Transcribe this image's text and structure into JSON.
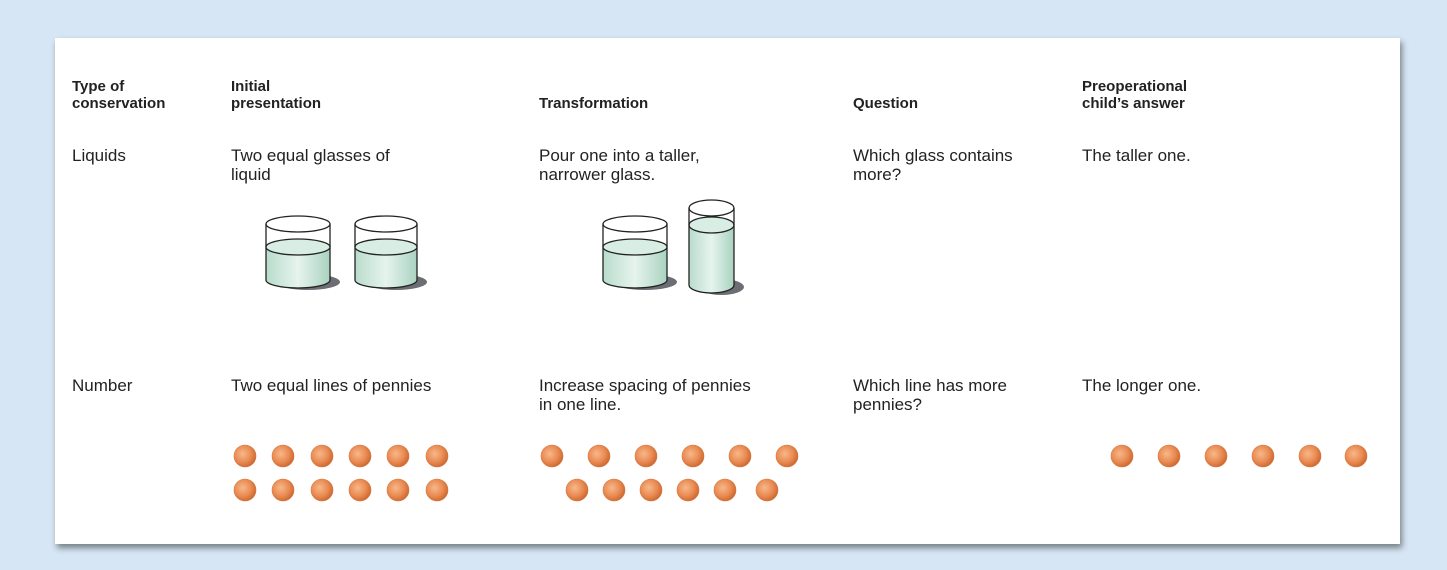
{
  "table": {
    "header": [
      [
        "Type of",
        "conservation"
      ],
      [
        "Initial",
        "presentation"
      ],
      [
        "Transformation"
      ],
      [
        "Question"
      ],
      [
        "Preoperational",
        "child’s answer"
      ]
    ],
    "rows": [
      [
        [
          "Liquids"
        ],
        [
          "Two equal glasses of",
          "liquid"
        ],
        [
          "Pour one into a taller,",
          "narrower glass."
        ],
        [
          "Which glass contains",
          "more?"
        ],
        [
          "The taller one."
        ]
      ],
      [
        [
          "Number"
        ],
        [
          "Two equal lines of pennies"
        ],
        [
          "Increase spacing of pennies",
          "in one line."
        ],
        [
          "Which line has more",
          "pennies?"
        ],
        [
          "The longer one."
        ]
      ]
    ]
  }
}
